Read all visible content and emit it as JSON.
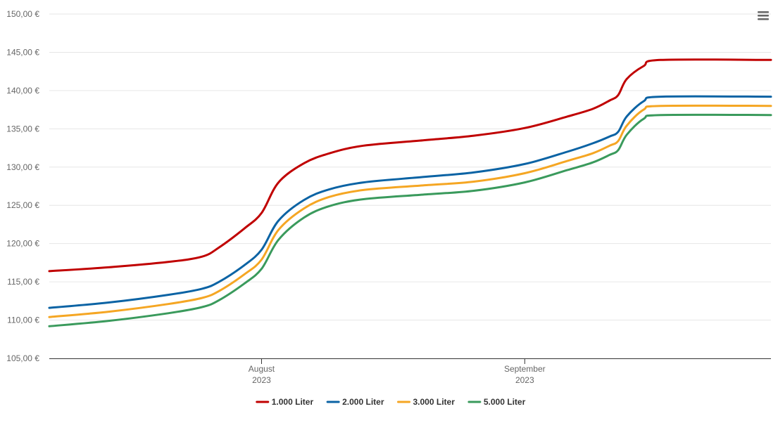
{
  "chart_data": {
    "type": "line",
    "title": "",
    "xlabel": "",
    "ylabel": "",
    "x_start": "2023-07-07",
    "x_end": "2023-09-30",
    "x_ticks": [
      {
        "date": "2023-08-01",
        "label": "August",
        "year": "2023"
      },
      {
        "date": "2023-09-01",
        "label": "September",
        "year": "2023"
      }
    ],
    "ylim": [
      105,
      150
    ],
    "y_ticks": [
      105,
      110,
      115,
      120,
      125,
      130,
      135,
      140,
      145,
      150
    ],
    "y_tick_labels": [
      "105,00 €",
      "110,00 €",
      "115,00 €",
      "120,00 €",
      "125,00 €",
      "130,00 €",
      "135,00 €",
      "140,00 €",
      "145,00 €",
      "150,00 €"
    ],
    "grid": "horizontal",
    "legend_position": "bottom-center",
    "series": [
      {
        "name": "1.000 Liter",
        "color": "#c00000",
        "points": [
          [
            "2023-07-07",
            116.4
          ],
          [
            "2023-07-14",
            116.9
          ],
          [
            "2023-07-21",
            117.6
          ],
          [
            "2023-07-25",
            118.3
          ],
          [
            "2023-07-27",
            119.5
          ],
          [
            "2023-07-30",
            122.0
          ],
          [
            "2023-08-01",
            124.0
          ],
          [
            "2023-08-03",
            128.0
          ],
          [
            "2023-08-06",
            130.5
          ],
          [
            "2023-08-09",
            131.8
          ],
          [
            "2023-08-13",
            132.8
          ],
          [
            "2023-08-20",
            133.5
          ],
          [
            "2023-08-26",
            134.1
          ],
          [
            "2023-09-01",
            135.1
          ],
          [
            "2023-09-06",
            136.6
          ],
          [
            "2023-09-09",
            137.6
          ],
          [
            "2023-09-11",
            138.7
          ],
          [
            "2023-09-12",
            139.4
          ],
          [
            "2023-09-13",
            141.5
          ],
          [
            "2023-09-15",
            143.2
          ],
          [
            "2023-09-17",
            144.0
          ],
          [
            "2023-09-30",
            144.0
          ]
        ]
      },
      {
        "name": "2.000 Liter",
        "color": "#0b63a4",
        "points": [
          [
            "2023-07-07",
            111.6
          ],
          [
            "2023-07-14",
            112.3
          ],
          [
            "2023-07-21",
            113.3
          ],
          [
            "2023-07-25",
            114.1
          ],
          [
            "2023-07-27",
            115.0
          ],
          [
            "2023-07-30",
            117.2
          ],
          [
            "2023-08-01",
            119.2
          ],
          [
            "2023-08-03",
            123.0
          ],
          [
            "2023-08-06",
            125.7
          ],
          [
            "2023-08-09",
            127.1
          ],
          [
            "2023-08-13",
            128.0
          ],
          [
            "2023-08-20",
            128.7
          ],
          [
            "2023-08-26",
            129.3
          ],
          [
            "2023-09-01",
            130.4
          ],
          [
            "2023-09-06",
            132.0
          ],
          [
            "2023-09-09",
            133.1
          ],
          [
            "2023-09-11",
            134.0
          ],
          [
            "2023-09-12",
            134.6
          ],
          [
            "2023-09-13",
            136.6
          ],
          [
            "2023-09-15",
            138.6
          ],
          [
            "2023-09-17",
            139.2
          ],
          [
            "2023-09-30",
            139.2
          ]
        ]
      },
      {
        "name": "3.000 Liter",
        "color": "#f5a623",
        "points": [
          [
            "2023-07-07",
            110.4
          ],
          [
            "2023-07-14",
            111.1
          ],
          [
            "2023-07-21",
            112.1
          ],
          [
            "2023-07-25",
            112.9
          ],
          [
            "2023-07-27",
            113.8
          ],
          [
            "2023-07-30",
            116.0
          ],
          [
            "2023-08-01",
            117.9
          ],
          [
            "2023-08-03",
            121.8
          ],
          [
            "2023-08-06",
            124.6
          ],
          [
            "2023-08-09",
            126.1
          ],
          [
            "2023-08-13",
            127.0
          ],
          [
            "2023-08-20",
            127.6
          ],
          [
            "2023-08-26",
            128.1
          ],
          [
            "2023-09-01",
            129.2
          ],
          [
            "2023-09-06",
            130.8
          ],
          [
            "2023-09-09",
            131.8
          ],
          [
            "2023-09-11",
            132.8
          ],
          [
            "2023-09-12",
            133.4
          ],
          [
            "2023-09-13",
            135.4
          ],
          [
            "2023-09-15",
            137.5
          ],
          [
            "2023-09-17",
            138.0
          ],
          [
            "2023-09-30",
            138.0
          ]
        ]
      },
      {
        "name": "5.000 Liter",
        "color": "#3a9a5c",
        "points": [
          [
            "2023-07-07",
            109.2
          ],
          [
            "2023-07-14",
            109.9
          ],
          [
            "2023-07-21",
            110.9
          ],
          [
            "2023-07-25",
            111.7
          ],
          [
            "2023-07-27",
            112.6
          ],
          [
            "2023-07-30",
            114.8
          ],
          [
            "2023-08-01",
            116.7
          ],
          [
            "2023-08-03",
            120.5
          ],
          [
            "2023-08-06",
            123.4
          ],
          [
            "2023-08-09",
            124.9
          ],
          [
            "2023-08-13",
            125.8
          ],
          [
            "2023-08-20",
            126.4
          ],
          [
            "2023-08-26",
            126.9
          ],
          [
            "2023-09-01",
            128.0
          ],
          [
            "2023-09-06",
            129.6
          ],
          [
            "2023-09-09",
            130.6
          ],
          [
            "2023-09-11",
            131.6
          ],
          [
            "2023-09-12",
            132.2
          ],
          [
            "2023-09-13",
            134.2
          ],
          [
            "2023-09-15",
            136.3
          ],
          [
            "2023-09-17",
            136.8
          ],
          [
            "2023-09-30",
            136.8
          ]
        ]
      }
    ]
  },
  "ui": {
    "menu_icon": "hamburger-menu-icon"
  }
}
